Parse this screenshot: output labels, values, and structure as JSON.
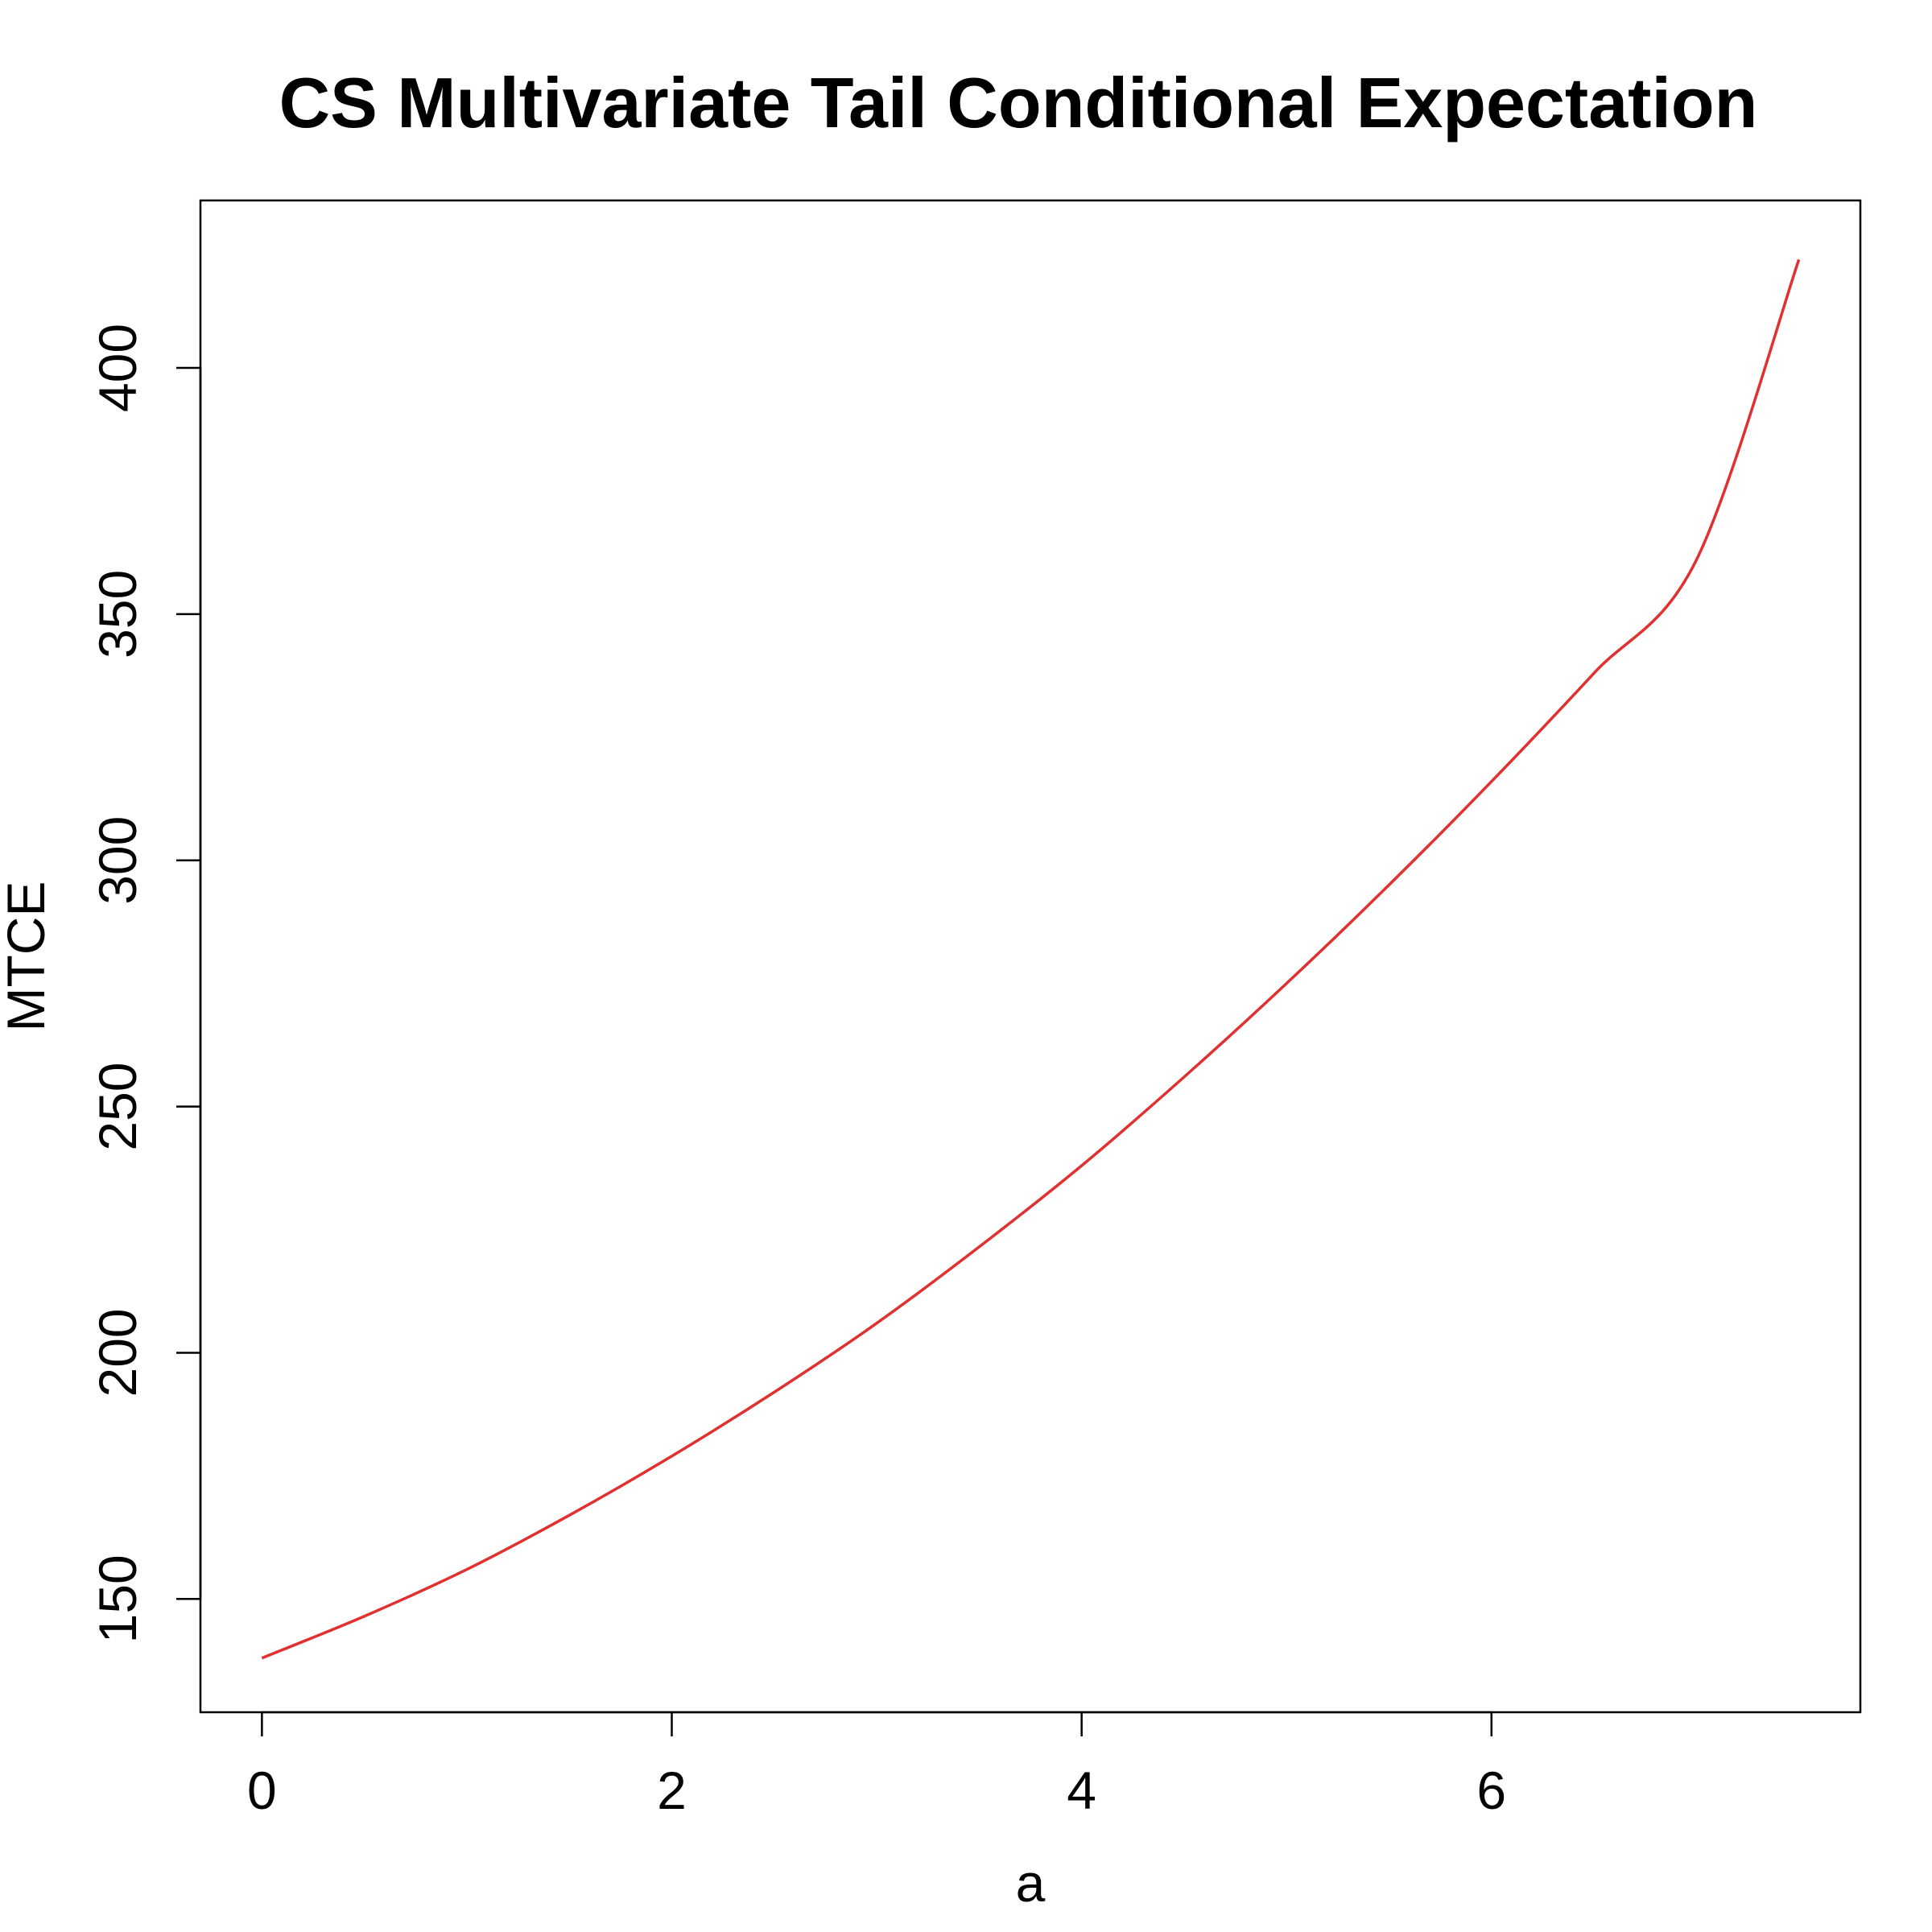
{
  "chart_data": {
    "type": "line",
    "title": "CS Multivariate Tail Conditional Expectation",
    "xlabel": "a",
    "ylabel": "MTCE",
    "xlim": [
      -0.3,
      7.8
    ],
    "ylim": [
      127,
      434
    ],
    "x_ticks": [
      0,
      2,
      4,
      6
    ],
    "y_ticks": [
      150,
      200,
      250,
      300,
      350,
      400
    ],
    "grid": false,
    "legend": "none",
    "series": [
      {
        "color": "#e03030",
        "x": [
          0,
          0.5,
          1,
          1.5,
          2,
          2.5,
          3,
          3.5,
          4,
          4.5,
          5,
          5.5,
          6,
          6.5,
          7,
          7.5
        ],
        "y": [
          138,
          146.5,
          156,
          167,
          179,
          192,
          206,
          221.5,
          238,
          256,
          275,
          295,
          316,
          338,
          361,
          422
        ]
      }
    ]
  }
}
